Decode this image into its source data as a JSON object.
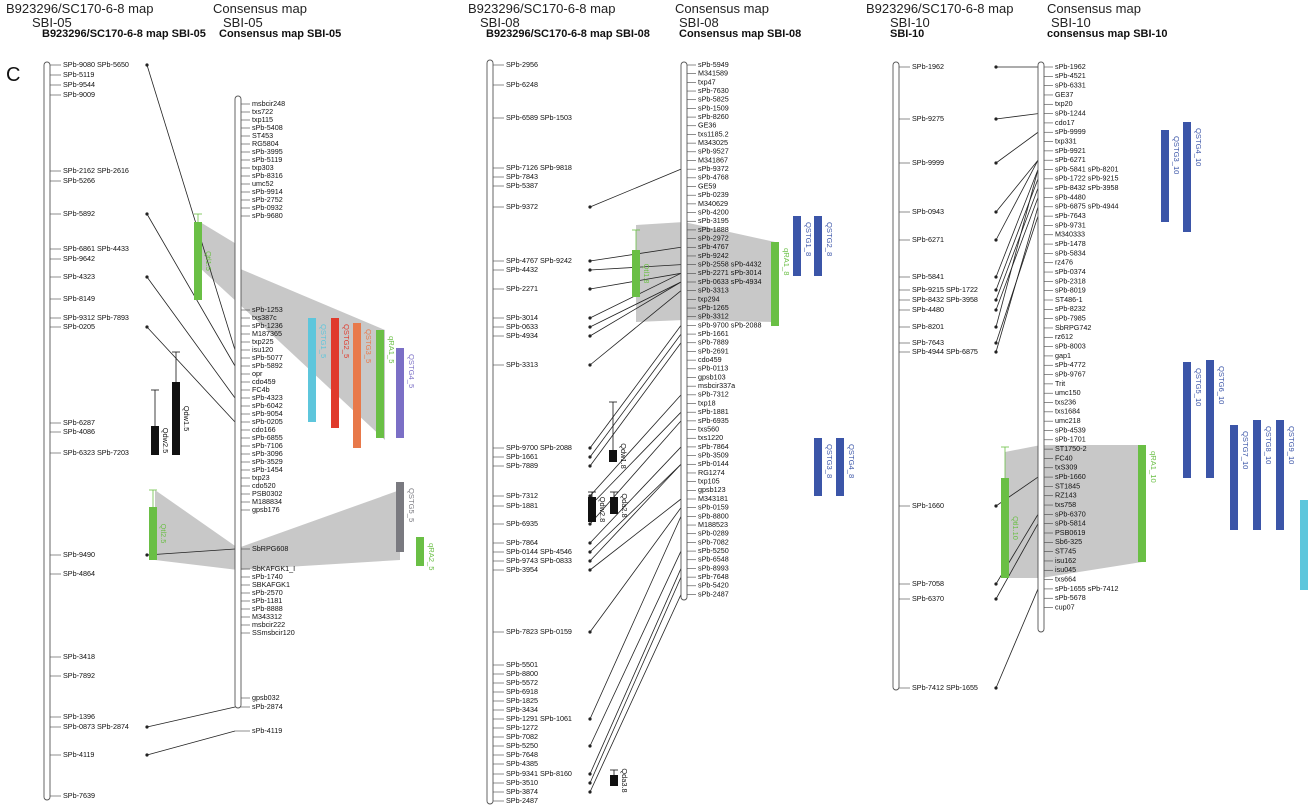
{
  "panel_letter": "C",
  "headers": {
    "sbi05_left_line1": "B923296/SC170-6-8 map",
    "sbi05_left_line2": "SBI-05",
    "sbi05_left_bold": "B923296/SC170-6-8 map SBI-05",
    "sbi05_right_line1": "Consensus map",
    "sbi05_right_line2": "SBI-05",
    "sbi05_right_bold": "Consensus map SBI-05",
    "sbi08_left_line1": "B923296/SC170-6-8 map",
    "sbi08_left_line2": "SBI-08",
    "sbi08_left_bold": "B923296/SC170-6-8 map SBI-08",
    "sbi08_right_line1": "Consensus map",
    "sbi08_right_line2": "SBI-08",
    "sbi08_right_bold": "Consensus map SBI-08",
    "sbi10_left_line1": "B923296/SC170-6-8 map",
    "sbi10_left_line2": "SBI-10",
    "sbi10_left_bold": "SBI-10",
    "sbi10_right_line1": "Consensus map",
    "sbi10_right_line2": "SBI-10",
    "sbi10_right_bold": "consensus map SBI-10"
  },
  "colors": {
    "chromosome": "#555555",
    "connector": "#222222",
    "shade": "#c8c8c8",
    "green": "#6abf45",
    "blue": "#3b55a8",
    "red": "#e03a2c",
    "orange": "#e8794a",
    "cyan": "#5ec6dc",
    "gray": "#7a7a80",
    "purple": "#7b6fc6",
    "black": "#111111"
  },
  "groups": [
    {
      "id": "sbi05",
      "left_markers": [
        "SPb-9080 SPb-5650",
        "SPb-5119",
        "SPb-9544",
        "SPb-9009",
        "SPb-2162 SPb-2616",
        "SPb-5266",
        "SPb-5892",
        "SPb-6861 SPb-4433",
        "SPb-9642",
        "SPb-4323",
        "SPb-8149",
        "SPb-9312 SPb-7893",
        "SPb-0205",
        "SPb-6287",
        "SPb-4086",
        "SPb-6323 SPb-7203",
        "SPb-9490",
        "SPb-4864",
        "SPb-3418",
        "SPb-7892",
        "SPb-1396",
        "SPb-0873 SPb-2874",
        "SPb-4119",
        "SPb-7639"
      ],
      "right_markers": [
        "msbcir248",
        "txs722",
        "txp115",
        "sPb-5408",
        "ST453",
        "RG5804",
        "sPb-3995",
        "sPb-5119",
        "txp303",
        "sPb-8316",
        "umc52",
        "sPb-9914",
        "sPb-2752",
        "sPb-0932",
        "sPb-9680",
        "sPb-1253",
        "txs387c",
        "sPb-1236",
        "M187365",
        "txp225",
        "isu120",
        "sPb-5077",
        "sPb-5892",
        "opr",
        "cdo459",
        "FC4b",
        "sPb-4323",
        "sPb-6042",
        "sPb-9054",
        "sPb-0205",
        "cdo166",
        "sPb-6855",
        "sPb-7106",
        "sPb-3096",
        "sPb-3529",
        "sPb-1454",
        "txp23",
        "cdo520",
        "PSB0302",
        "M188834",
        "gpsb176",
        "SbRPG608",
        "SbKAFGK1_I",
        "sPb-1740",
        "SBKAFGK1",
        "sPb-2570",
        "sPb-1181",
        "sPb-8888",
        "M343312",
        "msbcir222",
        "SSmsbcir120",
        "gpsb032",
        "sPb-2874",
        "sPb-4119"
      ],
      "qtl_left": [
        "Qtl1.5",
        "Qdw1.5",
        "Qdw2.5",
        "Qtl2.5"
      ],
      "qtl_right": [
        "QSTG1_5",
        "QSTG2_5",
        "QSTG3_5",
        "qRA1_5",
        "QSTG4_5",
        "QSTG5_5",
        "qRA2_5"
      ]
    },
    {
      "id": "sbi08",
      "left_markers": [
        "SPb-2956",
        "SPb-6248",
        "SPb-6589 SPb-1503",
        "SPb-7126 SPb-9818",
        "SPb-7843",
        "SPb-5387",
        "SPb-9372",
        "SPb-4767 SPb-9242",
        "SPb-4432",
        "SPb-2271",
        "SPb-3014",
        "SPb-0633",
        "SPb-4934",
        "SPb-3313",
        "SPb-9700 SPb-2088",
        "SPb-1661",
        "SPb-7889",
        "SPb-7312",
        "SPb-1881",
        "SPb-6935",
        "SPb-7864",
        "SPb-0144 SPb-4546",
        "SPb-9743 SPb-0833",
        "SPb-3954",
        "SPb-7823 SPb-0159",
        "SPb-5501",
        "SPb-8800",
        "SPb-5572",
        "SPb-6918",
        "SPb-1825",
        "SPb-3434",
        "SPb-1291 SPb-1061",
        "SPb-1272",
        "SPb-7082",
        "SPb-5250",
        "SPb-7648",
        "SPb-4385",
        "SPb-9341 SPb-8160",
        "SPb-3510",
        "SPb-3874",
        "SPb-2487"
      ],
      "right_markers": [
        "sPb-5949",
        "M341589",
        "txp47",
        "sPb-7630",
        "sPb-5825",
        "sPb-1509",
        "sPb-8260",
        "GE36",
        "txs1185.2",
        "M343025",
        "sPb-9527",
        "M341867",
        "sPb-9372",
        "sPb-4768",
        "GE59",
        "sPb-0239",
        "M340629",
        "sPb-4200",
        "sPb-3195",
        "sPb-1888",
        "sPb-2972",
        "sPb-4767",
        "sPb-9242",
        "sPb-2558 sPb-4432",
        "sPb-2271 sPb-3014",
        "sPb-0633 sPb-4934",
        "sPb-3313",
        "txp294",
        "sPb-1265",
        "sPb-3312",
        "sPb-9700 sPb-2088",
        "sPb-1661",
        "sPb-7889",
        "sPb-2691",
        "cdo459",
        "sPb-0113",
        "gpsb103",
        "msbcir337a",
        "sPb-7312",
        "txp18",
        "sPb-1881",
        "sPb-6935",
        "txs560",
        "txs1220",
        "sPb-7864",
        "sPb-3509",
        "sPb-0144",
        "RG1274",
        "txp105",
        "gpsb123",
        "M343181",
        "sPb-0159",
        "sPb-8800",
        "M188523",
        "sPb-0289",
        "sPb-7082",
        "sPb-5250",
        "sPb-6548",
        "sPb-8993",
        "sPb-7648",
        "sPb-5420",
        "sPb-2487"
      ],
      "qtl_left": [
        "Qtl1.8",
        "Qtl1.8",
        "Qdw1.8",
        "Qdw2.8",
        "Qda2.8",
        "Qda3.8"
      ],
      "qtl_right": [
        "QSTG1_8",
        "QSTG2_8",
        "qRA1_8",
        "QSTG3_8",
        "QSTG4_8"
      ]
    },
    {
      "id": "sbi10",
      "left_markers": [
        "SPb-1962",
        "SPb-9275",
        "SPb-9999",
        "SPb-0943",
        "SPb-6271",
        "SPb-5841",
        "SPb-9215 SPb-1722",
        "SPb-8432 SPb-3958",
        "SPb-4480",
        "SPb-8201",
        "SPb-7643",
        "SPb-4944 SPb-6875",
        "SPb-1660",
        "SPb-7058",
        "SPb-6370",
        "SPb-7412 SPb-1655"
      ],
      "right_markers": [
        "sPb-1962",
        "sPb-4521",
        "sPb-6331",
        "GE37",
        "txp20",
        "sPb-1244",
        "cdo17",
        "sPb-9999",
        "txp331",
        "sPb-9921",
        "sPb-6271",
        "sPb-5841 sPb-8201",
        "sPb-1722 sPb-9215",
        "sPb-8432 sPb-3958",
        "sPb-4480",
        "sPb-6875 sPb-4944",
        "sPb-7643",
        "sPb-9731",
        "M340333",
        "sPb-1478",
        "sPb-5834",
        "rz476",
        "sPb-0374",
        "sPb-2318",
        "sPb-8019",
        "ST486-1",
        "sPb-8232",
        "sPb-7985",
        "SbRPG742",
        "rz612",
        "sPb-8003",
        "gap1",
        "sPb-4772",
        "sPb-9767",
        "Trit",
        "umc150",
        "txs236",
        "txs1684",
        "umc218",
        "sPb-4539",
        "sPb-1701",
        "ST1750-2",
        "FC40",
        "txS309",
        "sPb-1660",
        "ST1845",
        "RZ143",
        "txs758",
        "sPb-6370",
        "sPb-5814",
        "PSB0619",
        "Sb6-325",
        "ST745",
        "isu162",
        "isu045",
        "txs664",
        "sPb-1655 sPb-7412",
        "sPb-5678",
        "cup07"
      ],
      "qtl_left": [
        "Qtl1.10"
      ],
      "qtl_right": [
        "QSTG3_10",
        "QSTG4_10",
        "QSTG5_10",
        "QSTG6_10",
        "QSTG7_10",
        "QSTG8_10",
        "QSTG9_10",
        "qRA1_10"
      ]
    }
  ]
}
